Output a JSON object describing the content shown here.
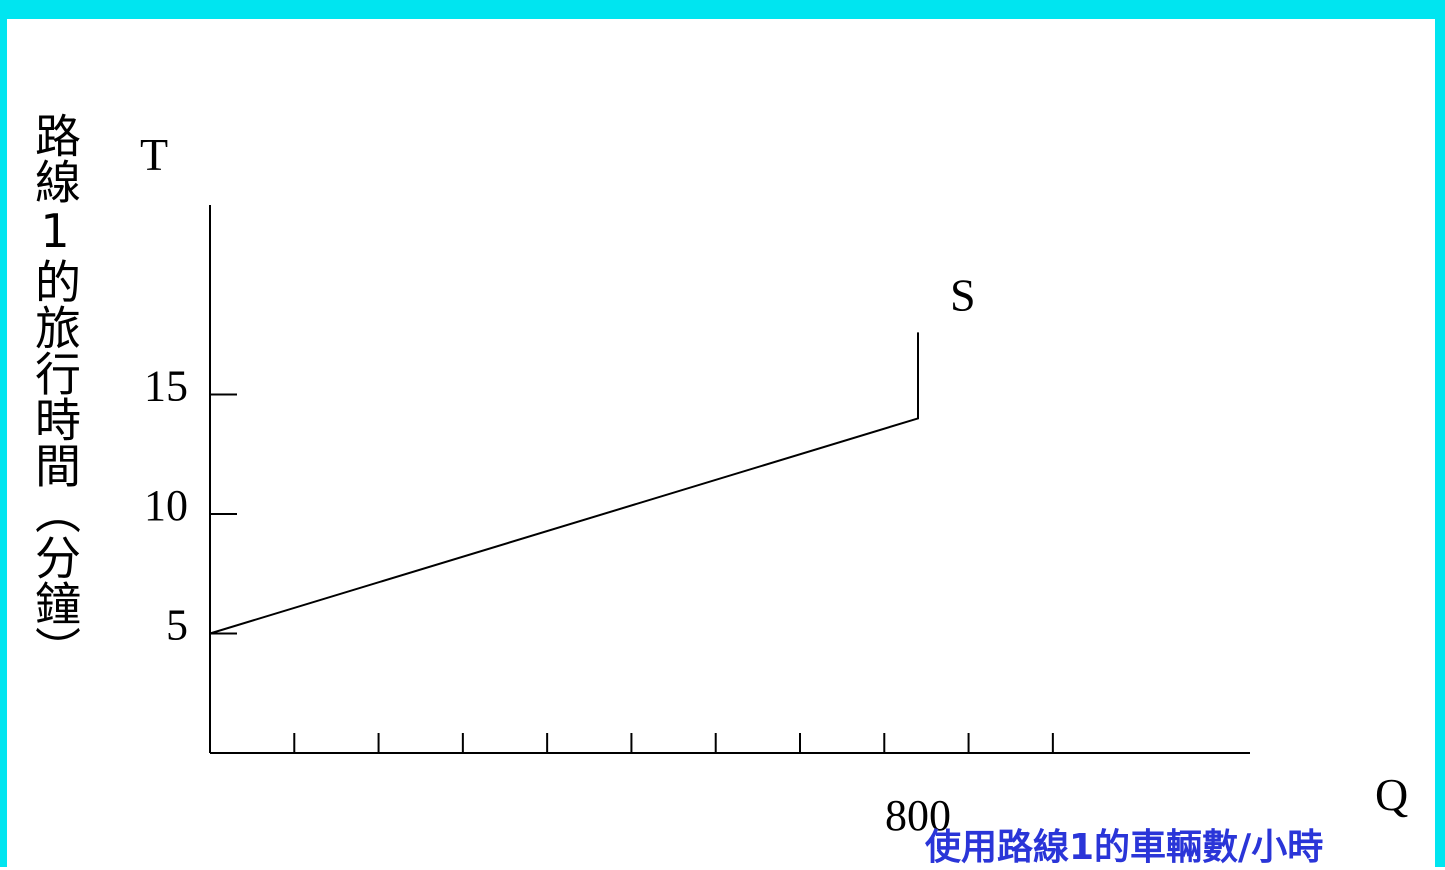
{
  "colors": {
    "frame": "#00e5f0",
    "axis": "#000000",
    "xlabel": "#2a35d8",
    "background": "#ffffff"
  },
  "chart_data": {
    "type": "line",
    "ylabel": "路線1的旅行時間（分鐘）",
    "xlabel": "使用路線1的車輛數/小時",
    "y_axis_symbol": "T",
    "x_axis_symbol": "Q",
    "ytick_labels": [
      "5",
      "10",
      "15"
    ],
    "yticks": [
      5,
      10,
      15
    ],
    "xtick_labels": [
      "800"
    ],
    "xticks_labeled": [
      800
    ],
    "xticks_unlabeled_count": 10,
    "xlim": [
      0,
      1100
    ],
    "ylim": [
      0,
      23
    ],
    "grid": false,
    "series": [
      {
        "name": "S",
        "points": [
          {
            "x": 0,
            "y": 5
          },
          {
            "x": 800,
            "y": 14
          },
          {
            "x": 800,
            "y": 17.6
          }
        ]
      }
    ]
  }
}
